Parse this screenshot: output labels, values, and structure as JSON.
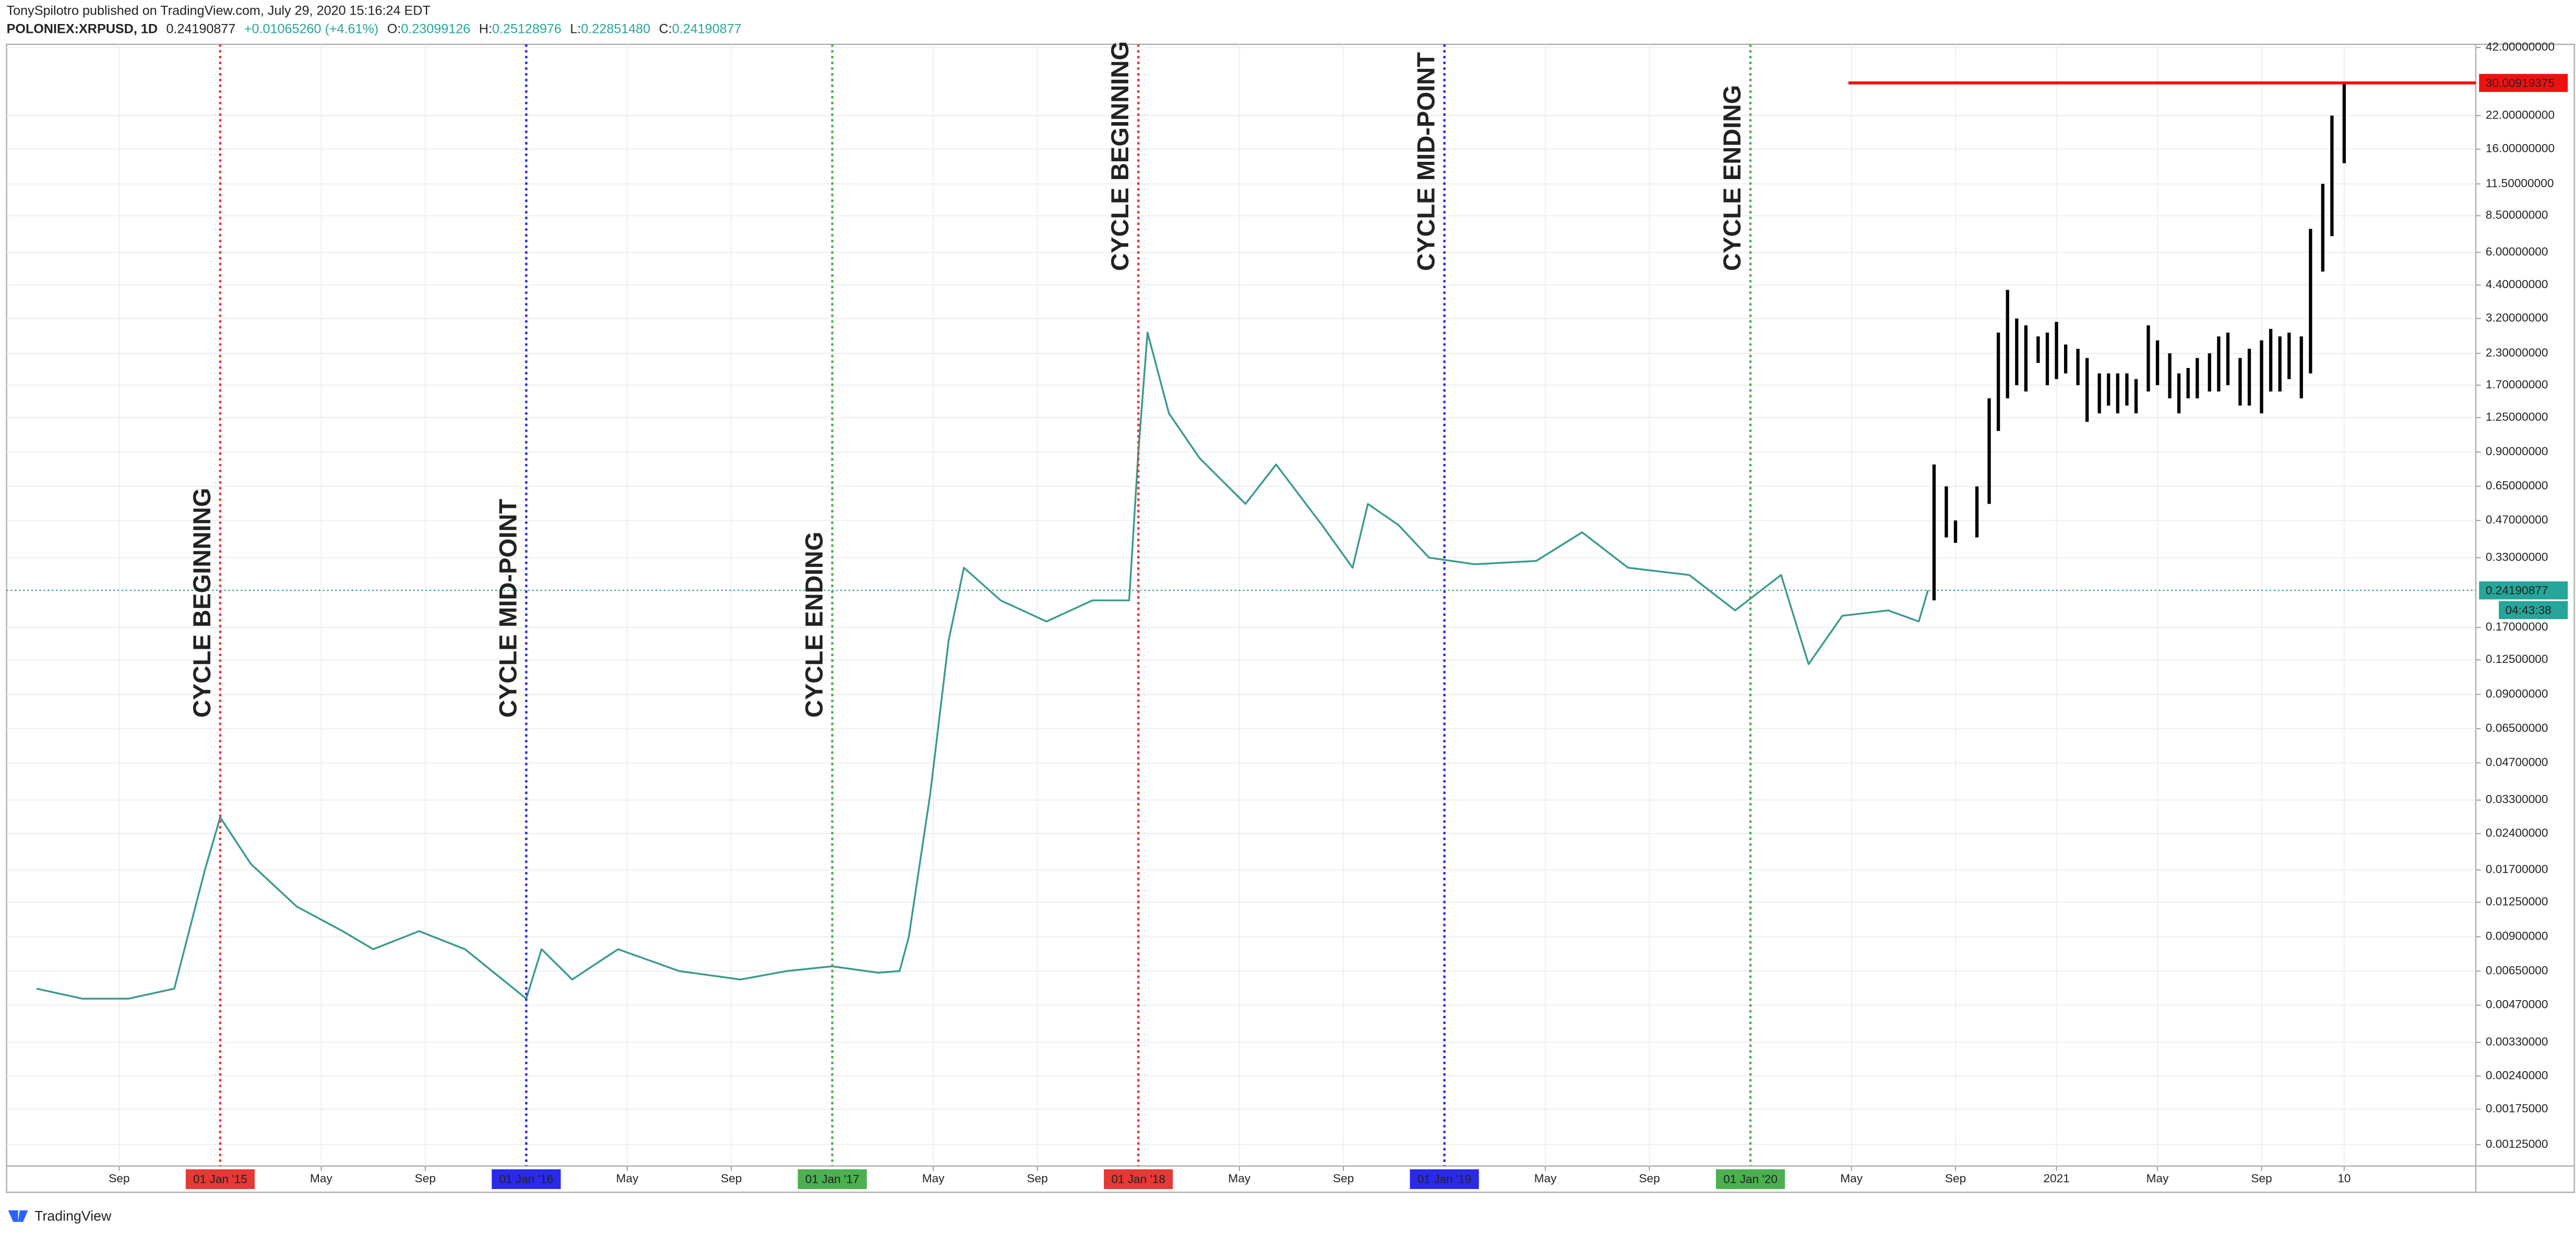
{
  "header": {
    "author_line": "TonySpilotro published on TradingView.com, July 29, 2020 15:16:24 EDT",
    "symbol": "POLONIEX:XRPUSD, 1D",
    "price": "0.24190877",
    "change": "+0.01065260 (+4.61%)",
    "ohlc": [
      {
        "label": "O:",
        "value": "0.23099126"
      },
      {
        "label": "H:",
        "value": "0.25128976"
      },
      {
        "label": "L:",
        "value": "0.22851480"
      },
      {
        "label": "C:",
        "value": "0.24190877"
      }
    ]
  },
  "footer": {
    "brand": "TradingView"
  },
  "chart_data": {
    "type": "line",
    "log_scale": true,
    "grid": true,
    "color": "#3a9a8e",
    "x": [
      2014.4,
      2014.55,
      2014.7,
      2014.85,
      2014.95,
      2015.0,
      2015.1,
      2015.25,
      2015.4,
      2015.5,
      2015.65,
      2015.8,
      2016.0,
      2016.05,
      2016.15,
      2016.3,
      2016.5,
      2016.7,
      2016.85,
      2017.0,
      2017.15,
      2017.22,
      2017.25,
      2017.32,
      2017.38,
      2017.43,
      2017.55,
      2017.7,
      2017.85,
      2017.97,
      2018.0,
      2018.03,
      2018.1,
      2018.2,
      2018.35,
      2018.45,
      2018.6,
      2018.7,
      2018.75,
      2018.85,
      2018.95,
      2019.1,
      2019.3,
      2019.45,
      2019.6,
      2019.8,
      2019.95,
      2020.1,
      2020.19,
      2020.3,
      2020.45,
      2020.55,
      2020.58
    ],
    "values": [
      0.0055,
      0.005,
      0.005,
      0.0055,
      0.017,
      0.028,
      0.018,
      0.012,
      0.0095,
      0.008,
      0.0095,
      0.008,
      0.005,
      0.008,
      0.006,
      0.008,
      0.0065,
      0.006,
      0.0065,
      0.0068,
      0.0064,
      0.0065,
      0.009,
      0.035,
      0.15,
      0.3,
      0.22,
      0.18,
      0.22,
      0.22,
      0.9,
      2.8,
      1.3,
      0.85,
      0.55,
      0.8,
      0.45,
      0.3,
      0.55,
      0.45,
      0.33,
      0.31,
      0.32,
      0.42,
      0.3,
      0.28,
      0.2,
      0.28,
      0.12,
      0.19,
      0.2,
      0.18,
      0.242
    ],
    "projection": {
      "type": "range-bar",
      "color": "#000000",
      "x": [
        2020.6,
        2020.64,
        2020.67,
        2020.74,
        2020.78,
        2020.81,
        2020.84,
        2020.87,
        2020.9,
        2020.94,
        2020.97,
        2021.0,
        2021.03,
        2021.07,
        2021.1,
        2021.14,
        2021.17,
        2021.2,
        2021.23,
        2021.26,
        2021.3,
        2021.33,
        2021.37,
        2021.4,
        2021.43,
        2021.46,
        2021.5,
        2021.53,
        2021.56,
        2021.6,
        2021.63,
        2021.67,
        2021.7,
        2021.73,
        2021.76,
        2021.8,
        2021.83,
        2021.87,
        2021.9,
        2021.94
      ],
      "low": [
        0.22,
        0.4,
        0.38,
        0.4,
        0.55,
        1.1,
        1.5,
        1.7,
        1.6,
        2.1,
        1.7,
        1.8,
        1.9,
        1.7,
        1.2,
        1.3,
        1.4,
        1.3,
        1.4,
        1.3,
        1.6,
        1.7,
        1.5,
        1.3,
        1.5,
        1.5,
        1.6,
        1.6,
        1.7,
        1.4,
        1.4,
        1.3,
        1.6,
        1.6,
        1.8,
        1.5,
        1.9,
        5,
        7,
        14
      ],
      "high": [
        0.8,
        0.65,
        0.47,
        0.65,
        1.5,
        2.8,
        4.2,
        3.2,
        3,
        2.7,
        2.8,
        3.1,
        2.5,
        2.4,
        2.2,
        1.9,
        1.9,
        1.9,
        1.9,
        1.8,
        3,
        2.6,
        2.3,
        1.9,
        2,
        2.2,
        2.3,
        2.7,
        2.8,
        2.2,
        2.4,
        2.6,
        2.9,
        2.7,
        2.8,
        2.7,
        7.5,
        11.5,
        22,
        30
      ]
    },
    "xlim": [
      2014.302,
      2022.37
    ],
    "ylim": [
      0.00102,
      43.3
    ],
    "xticks": [
      {
        "value": 2014.67,
        "label": "Sep"
      },
      {
        "value": 2015.33,
        "label": "May"
      },
      {
        "value": 2015.67,
        "label": "Sep"
      },
      {
        "value": 2016.33,
        "label": "May"
      },
      {
        "value": 2016.67,
        "label": "Sep"
      },
      {
        "value": 2017.33,
        "label": "May"
      },
      {
        "value": 2017.67,
        "label": "Sep"
      },
      {
        "value": 2018.33,
        "label": "May"
      },
      {
        "value": 2018.67,
        "label": "Sep"
      },
      {
        "value": 2019.33,
        "label": "May"
      },
      {
        "value": 2019.67,
        "label": "Sep"
      },
      {
        "value": 2020.33,
        "label": "May"
      },
      {
        "value": 2020.67,
        "label": "Sep"
      },
      2021,
      {
        "value": 2021.33,
        "label": "May"
      },
      {
        "value": 2021.67,
        "label": "Sep"
      },
      {
        "value": 2021.94,
        "label": "10"
      }
    ],
    "yticks": [
      {
        "value": 42,
        "label": "42.00000000"
      },
      {
        "value": 22,
        "label": "22.00000000"
      },
      {
        "value": 16,
        "label": "16.00000000"
      },
      {
        "value": 11.5,
        "label": "11.50000000"
      },
      {
        "value": 8.5,
        "label": "8.50000000"
      },
      {
        "value": 6,
        "label": "6.00000000"
      },
      {
        "value": 4.4,
        "label": "4.40000000"
      },
      {
        "value": 3.2,
        "label": "3.20000000"
      },
      {
        "value": 2.3,
        "label": "2.30000000"
      },
      {
        "value": 1.7,
        "label": "1.70000000"
      },
      {
        "value": 1.25,
        "label": "1.25000000"
      },
      {
        "value": 0.9,
        "label": "0.90000000"
      },
      {
        "value": 0.65,
        "label": "0.65000000"
      },
      {
        "value": 0.47,
        "label": "0.47000000"
      },
      {
        "value": 0.33,
        "label": "0.33000000"
      },
      {
        "value": 0.17,
        "label": "0.17000000"
      },
      {
        "value": 0.125,
        "label": "0.12500000"
      },
      {
        "value": 0.09,
        "label": "0.09000000"
      },
      {
        "value": 0.065,
        "label": "0.06500000"
      },
      {
        "value": 0.047,
        "label": "0.04700000"
      },
      {
        "value": 0.033,
        "label": "0.03300000"
      },
      {
        "value": 0.024,
        "label": "0.02400000"
      },
      {
        "value": 0.017,
        "label": "0.01700000"
      },
      {
        "value": 0.0125,
        "label": "0.01250000"
      },
      {
        "value": 0.009,
        "label": "0.00900000"
      },
      {
        "value": 0.0065,
        "label": "0.00650000"
      },
      {
        "value": 0.0047,
        "label": "0.00470000"
      },
      {
        "value": 0.0033,
        "label": "0.00330000"
      },
      {
        "value": 0.0024,
        "label": "0.00240000"
      },
      {
        "value": 0.00175,
        "label": "0.00175000"
      },
      {
        "value": 0.00125,
        "label": "0.00125000"
      }
    ],
    "vertical_lines": [
      {
        "x": 2015,
        "date_label": "01 Jan '15",
        "text": "CYCLE BEGINNING",
        "color": "#e53935"
      },
      {
        "x": 2016,
        "date_label": "01 Jan '16",
        "text": "CYCLE MID-POINT",
        "color": "#1565c0",
        "line_color": "#2a2ae8"
      },
      {
        "x": 2017,
        "date_label": "01 Jan '17",
        "text": "CYCLE ENDING",
        "color": "#43a047",
        "line_color": "#4caf50"
      },
      {
        "x": 2018,
        "date_label": "01 Jan '18",
        "text": "CYCLE BEGINNING",
        "color": "#e53935"
      },
      {
        "x": 2019,
        "date_label": "01 Jan '19",
        "text": "CYCLE MID-POINT",
        "color": "#1565c0",
        "line_color": "#2a2ae8"
      },
      {
        "x": 2020,
        "date_label": "01 Jan '20",
        "text": "CYCLE ENDING",
        "color": "#43a047",
        "line_color": "#4caf50"
      }
    ],
    "target_line": {
      "value": 30.00919375,
      "x_start": 2020.32,
      "color": "#f01010"
    },
    "last_price": 0.24190877,
    "last_price_color": "#26a69a",
    "countdown": "04:43:38"
  }
}
